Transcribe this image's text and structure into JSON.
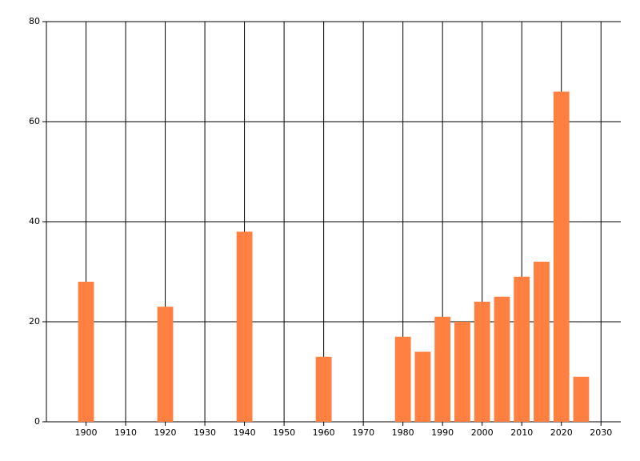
{
  "chart_data": {
    "type": "bar",
    "x": [
      1900,
      1920,
      1940,
      1960,
      1980,
      1985,
      1990,
      1995,
      2000,
      2005,
      2010,
      2015,
      2020,
      2025
    ],
    "values": [
      28,
      23,
      38,
      13,
      17,
      14,
      21,
      20,
      24,
      25,
      29,
      32,
      66,
      9
    ],
    "color": "#ff8040",
    "xlim": [
      1890,
      2035
    ],
    "xticks": [
      1900,
      1910,
      1920,
      1930,
      1940,
      1950,
      1960,
      1970,
      1980,
      1990,
      2000,
      2010,
      2020,
      2030
    ],
    "ylim": [
      0,
      80
    ],
    "yticks": [
      0,
      20,
      40,
      60,
      80
    ],
    "grid": true
  }
}
